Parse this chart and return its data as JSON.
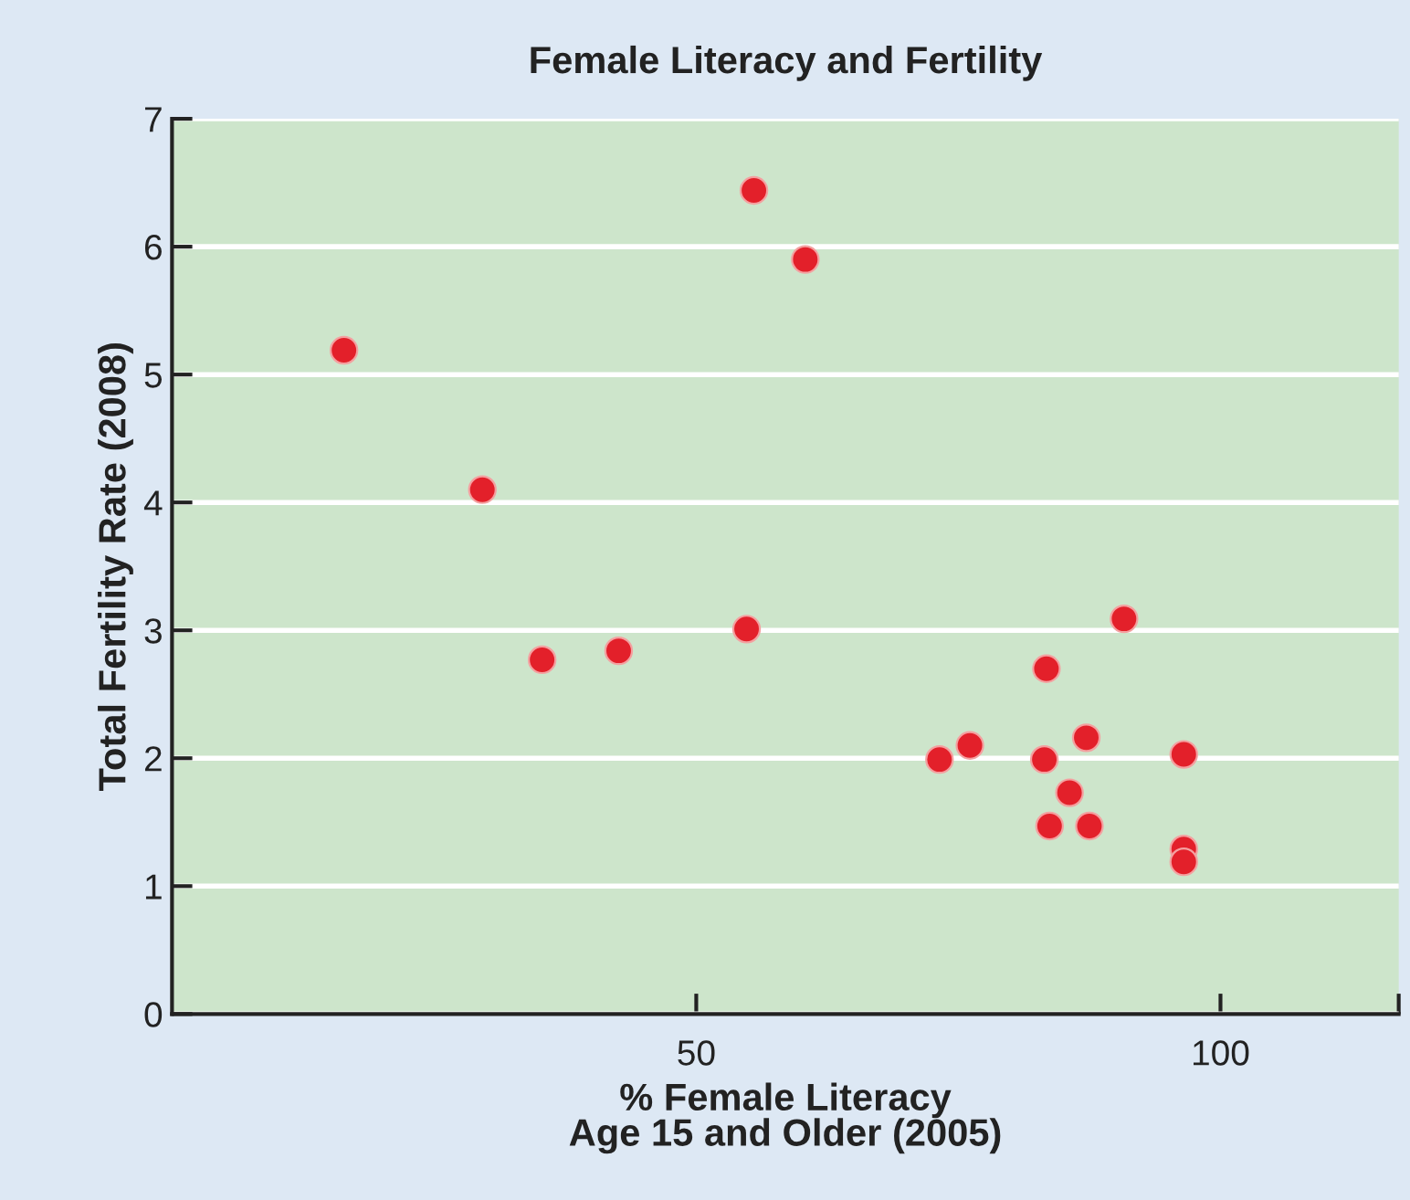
{
  "chart_data": {
    "type": "scatter",
    "title": "Female Literacy and Fertility",
    "xlabel": "% Female Literacy\nAge 15 and Older (2005)",
    "ylabel": "Total Fertility Rate (2008)",
    "x": [
      16.4,
      29.6,
      35.3,
      42.6,
      54.8,
      55.5,
      60.4,
      90.8,
      83.4,
      73.2,
      76.1,
      83.2,
      87.2,
      96.5,
      85.6,
      83.7,
      87.5,
      96.5,
      96.5
    ],
    "values": [
      5.19,
      4.1,
      2.77,
      2.84,
      3.01,
      6.44,
      5.9,
      3.09,
      2.7,
      1.99,
      2.1,
      1.99,
      2.16,
      2.03,
      1.73,
      1.47,
      1.47,
      1.29,
      1.19
    ],
    "color": "#e3202a",
    "marker": "circle",
    "xlim": [
      0,
      117
    ],
    "xticks": [
      50,
      100,
      {
        "value": 117,
        "label": null
      }
    ],
    "ylim": [
      0,
      7
    ],
    "yticks": [
      0,
      1,
      2,
      3,
      4,
      5,
      6,
      7
    ],
    "grid": "y"
  }
}
